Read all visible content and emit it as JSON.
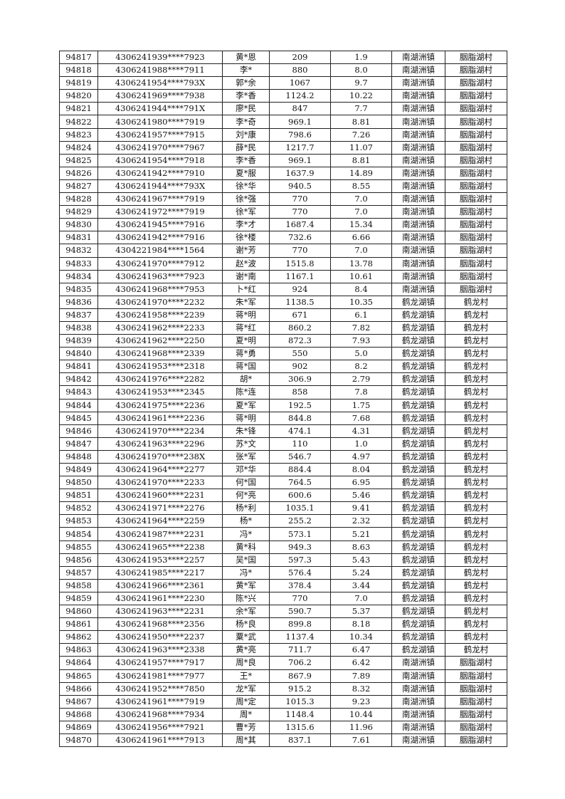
{
  "rows": [
    [
      "94817",
      "4306241939****7923",
      "黄*恩",
      "209",
      "1.9",
      "南湖洲镇",
      "胭脂湖村"
    ],
    [
      "94818",
      "4306241988****7911",
      "李*",
      "880",
      "8.0",
      "南湖洲镇",
      "胭脂湖村"
    ],
    [
      "94819",
      "4306241954****793X",
      "郭*余",
      "1067",
      "9.7",
      "南湖洲镇",
      "胭脂湖村"
    ],
    [
      "94820",
      "4306241969****7938",
      "李*香",
      "1124.2",
      "10.22",
      "南湖洲镇",
      "胭脂湖村"
    ],
    [
      "94821",
      "4306241944****791X",
      "廖*民",
      "847",
      "7.7",
      "南湖洲镇",
      "胭脂湖村"
    ],
    [
      "94822",
      "4306241980****7919",
      "李*奇",
      "969.1",
      "8.81",
      "南湖洲镇",
      "胭脂湖村"
    ],
    [
      "94823",
      "4306241957****7915",
      "刘*康",
      "798.6",
      "7.26",
      "南湖洲镇",
      "胭脂湖村"
    ],
    [
      "94824",
      "4306241970****7967",
      "薛*民",
      "1217.7",
      "11.07",
      "南湖洲镇",
      "胭脂湖村"
    ],
    [
      "94825",
      "4306241954****7918",
      "李*香",
      "969.1",
      "8.81",
      "南湖洲镇",
      "胭脂湖村"
    ],
    [
      "94826",
      "4306241942****7910",
      "夏*服",
      "1637.9",
      "14.89",
      "南湖洲镇",
      "胭脂湖村"
    ],
    [
      "94827",
      "4306241944****793X",
      "徐*华",
      "940.5",
      "8.55",
      "南湖洲镇",
      "胭脂湖村"
    ],
    [
      "94828",
      "4306241967****7919",
      "徐*强",
      "770",
      "7.0",
      "南湖洲镇",
      "胭脂湖村"
    ],
    [
      "94829",
      "4306241972****7919",
      "徐*军",
      "770",
      "7.0",
      "南湖洲镇",
      "胭脂湖村"
    ],
    [
      "94830",
      "4306241945****7916",
      "李*才",
      "1687.4",
      "15.34",
      "南湖洲镇",
      "胭脂湖村"
    ],
    [
      "94831",
      "4306241942****7916",
      "徐*楼",
      "732.6",
      "6.66",
      "南湖洲镇",
      "胭脂湖村"
    ],
    [
      "94832",
      "4304221984****1564",
      "谢*芳",
      "770",
      "7.0",
      "南湖洲镇",
      "胭脂湖村"
    ],
    [
      "94833",
      "4306241970****7912",
      "赵*波",
      "1515.8",
      "13.78",
      "南湖洲镇",
      "胭脂湖村"
    ],
    [
      "94834",
      "4306241963****7923",
      "谢*南",
      "1167.1",
      "10.61",
      "南湖洲镇",
      "胭脂湖村"
    ],
    [
      "94835",
      "4306241968****7953",
      "卜*红",
      "924",
      "8.4",
      "南湖洲镇",
      "胭脂湖村"
    ],
    [
      "94836",
      "4306241970****2232",
      "朱*军",
      "1138.5",
      "10.35",
      "鹤龙湖镇",
      "鹤龙村"
    ],
    [
      "94837",
      "4306241958****2239",
      "蒋*明",
      "671",
      "6.1",
      "鹤龙湖镇",
      "鹤龙村"
    ],
    [
      "94838",
      "4306241962****2233",
      "蒋*红",
      "860.2",
      "7.82",
      "鹤龙湖镇",
      "鹤龙村"
    ],
    [
      "94839",
      "4306241962****2250",
      "夏*明",
      "872.3",
      "7.93",
      "鹤龙湖镇",
      "鹤龙村"
    ],
    [
      "94840",
      "4306241968****2339",
      "蒋*勇",
      "550",
      "5.0",
      "鹤龙湖镇",
      "鹤龙村"
    ],
    [
      "94841",
      "4306241953****2318",
      "蒋*国",
      "902",
      "8.2",
      "鹤龙湖镇",
      "鹤龙村"
    ],
    [
      "94842",
      "4306241976****2282",
      "胡*",
      "306.9",
      "2.79",
      "鹤龙湖镇",
      "鹤龙村"
    ],
    [
      "94843",
      "4306241953****2345",
      "陈*连",
      "858",
      "7.8",
      "鹤龙湖镇",
      "鹤龙村"
    ],
    [
      "94844",
      "4306241975****2236",
      "夏*军",
      "192.5",
      "1.75",
      "鹤龙湖镇",
      "鹤龙村"
    ],
    [
      "94845",
      "4306241961****2236",
      "蒋*明",
      "844.8",
      "7.68",
      "鹤龙湖镇",
      "鹤龙村"
    ],
    [
      "94846",
      "4306241970****2234",
      "朱*锋",
      "474.1",
      "4.31",
      "鹤龙湖镇",
      "鹤龙村"
    ],
    [
      "94847",
      "4306241963****2296",
      "苏*文",
      "110",
      "1.0",
      "鹤龙湖镇",
      "鹤龙村"
    ],
    [
      "94848",
      "4306241970****238X",
      "张*军",
      "546.7",
      "4.97",
      "鹤龙湖镇",
      "鹤龙村"
    ],
    [
      "94849",
      "4306241964****2277",
      "邓*华",
      "884.4",
      "8.04",
      "鹤龙湖镇",
      "鹤龙村"
    ],
    [
      "94850",
      "4306241970****2233",
      "何*国",
      "764.5",
      "6.95",
      "鹤龙湖镇",
      "鹤龙村"
    ],
    [
      "94851",
      "4306241960****2231",
      "何*亮",
      "600.6",
      "5.46",
      "鹤龙湖镇",
      "鹤龙村"
    ],
    [
      "94852",
      "4306241971****2276",
      "杨*利",
      "1035.1",
      "9.41",
      "鹤龙湖镇",
      "鹤龙村"
    ],
    [
      "94853",
      "4306241964****2259",
      "杨*",
      "255.2",
      "2.32",
      "鹤龙湖镇",
      "鹤龙村"
    ],
    [
      "94854",
      "4306241987****2231",
      "冯*",
      "573.1",
      "5.21",
      "鹤龙湖镇",
      "鹤龙村"
    ],
    [
      "94855",
      "4306241965****2238",
      "黄*科",
      "949.3",
      "8.63",
      "鹤龙湖镇",
      "鹤龙村"
    ],
    [
      "94856",
      "4306241953****2257",
      "吴*国",
      "597.3",
      "5.43",
      "鹤龙湖镇",
      "鹤龙村"
    ],
    [
      "94857",
      "4306241985****2217",
      "冯*",
      "576.4",
      "5.24",
      "鹤龙湖镇",
      "鹤龙村"
    ],
    [
      "94858",
      "4306241966****2361",
      "黄*军",
      "378.4",
      "3.44",
      "鹤龙湖镇",
      "鹤龙村"
    ],
    [
      "94859",
      "4306241961****2230",
      "陈*兴",
      "770",
      "7.0",
      "鹤龙湖镇",
      "鹤龙村"
    ],
    [
      "94860",
      "4306241963****2231",
      "余*军",
      "590.7",
      "5.37",
      "鹤龙湖镇",
      "鹤龙村"
    ],
    [
      "94861",
      "4306241968****2356",
      "杨*良",
      "899.8",
      "8.18",
      "鹤龙湖镇",
      "鹤龙村"
    ],
    [
      "94862",
      "4306241950****2237",
      "粟*武",
      "1137.4",
      "10.34",
      "鹤龙湖镇",
      "鹤龙村"
    ],
    [
      "94863",
      "4306241963****2338",
      "黄*亮",
      "711.7",
      "6.47",
      "鹤龙湖镇",
      "鹤龙村"
    ],
    [
      "94864",
      "4306241957****7917",
      "周*良",
      "706.2",
      "6.42",
      "南湖洲镇",
      "胭脂湖村"
    ],
    [
      "94865",
      "4306241981****7977",
      "王*",
      "867.9",
      "7.89",
      "南湖洲镇",
      "胭脂湖村"
    ],
    [
      "94866",
      "4306241952****7850",
      "龙*军",
      "915.2",
      "8.32",
      "南湖洲镇",
      "胭脂湖村"
    ],
    [
      "94867",
      "4306241961****7919",
      "周*定",
      "1015.3",
      "9.23",
      "南湖洲镇",
      "胭脂湖村"
    ],
    [
      "94868",
      "4306241968****7934",
      "周*",
      "1148.4",
      "10.44",
      "南湖洲镇",
      "胭脂湖村"
    ],
    [
      "94869",
      "4306241956****7921",
      "曹*芳",
      "1315.6",
      "11.96",
      "南湖洲镇",
      "胭脂湖村"
    ],
    [
      "94870",
      "4306241961****7913",
      "周*其",
      "837.1",
      "7.61",
      "南湖洲镇",
      "胭脂湖村"
    ]
  ]
}
